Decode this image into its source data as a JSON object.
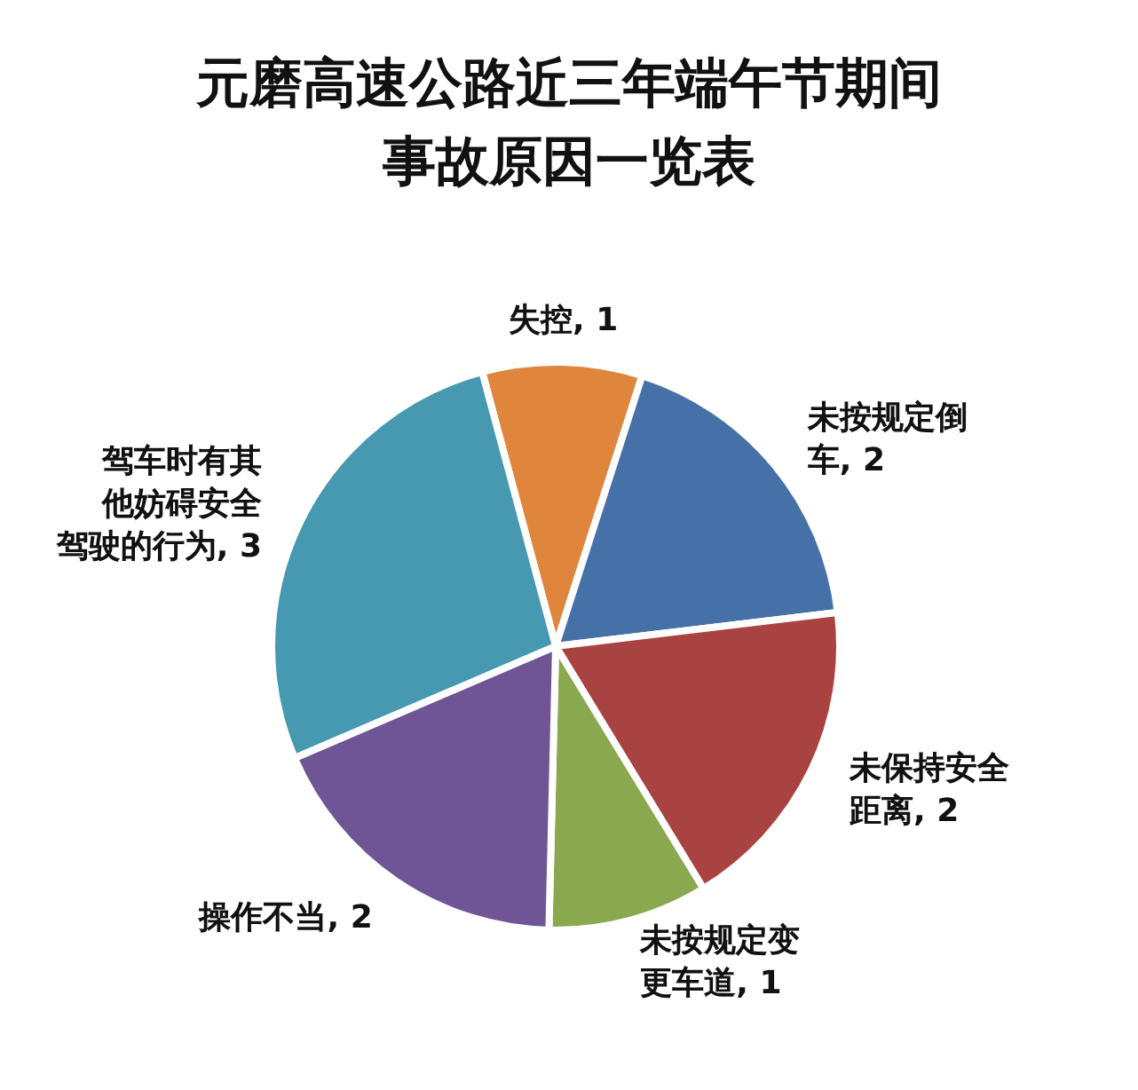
{
  "chart_data": {
    "type": "pie",
    "title": "元磨高速公路近三年端午节期间事故原因一览表",
    "categories": [
      "失控",
      "未按规定倒车",
      "未保持安全距离",
      "未按规定变更车道",
      "操作不当",
      "驾车时有其他妨碍安全驾驶的行为"
    ],
    "values": [
      1,
      2,
      2,
      1,
      2,
      3
    ],
    "value_labels": [
      ", 1",
      ", 2",
      ", 2",
      ", 1",
      ", 2",
      ", 3"
    ],
    "colors": [
      "#e0863c",
      "#4670a8",
      "#a94341",
      "#8aa84e",
      "#6f5595",
      "#4699b1"
    ],
    "legend": false
  }
}
